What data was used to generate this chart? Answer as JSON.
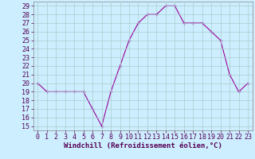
{
  "x": [
    0,
    1,
    2,
    3,
    4,
    5,
    6,
    7,
    8,
    9,
    10,
    11,
    12,
    13,
    14,
    15,
    16,
    17,
    18,
    19,
    20,
    21,
    22,
    23
  ],
  "y": [
    20,
    19,
    19,
    19,
    19,
    19,
    17,
    15,
    19,
    22,
    25,
    27,
    28,
    28,
    29,
    29,
    27,
    27,
    27,
    26,
    25,
    21,
    19,
    20
  ],
  "line_color": "#990099",
  "marker": "+",
  "bg_color": "#cceeff",
  "grid_color": "#aacccc",
  "xlabel": "Windchill (Refroidissement éolien,°C)",
  "xlim": [
    -0.5,
    23.5
  ],
  "ylim": [
    14.5,
    29.5
  ],
  "yticks": [
    15,
    16,
    17,
    18,
    19,
    20,
    21,
    22,
    23,
    24,
    25,
    26,
    27,
    28,
    29
  ],
  "xticks": [
    0,
    1,
    2,
    3,
    4,
    5,
    6,
    7,
    8,
    9,
    10,
    11,
    12,
    13,
    14,
    15,
    16,
    17,
    18,
    19,
    20,
    21,
    22,
    23
  ],
  "linewidth": 0.8,
  "markersize": 3,
  "tick_fontsize": 6,
  "xlabel_fontsize": 6.5
}
